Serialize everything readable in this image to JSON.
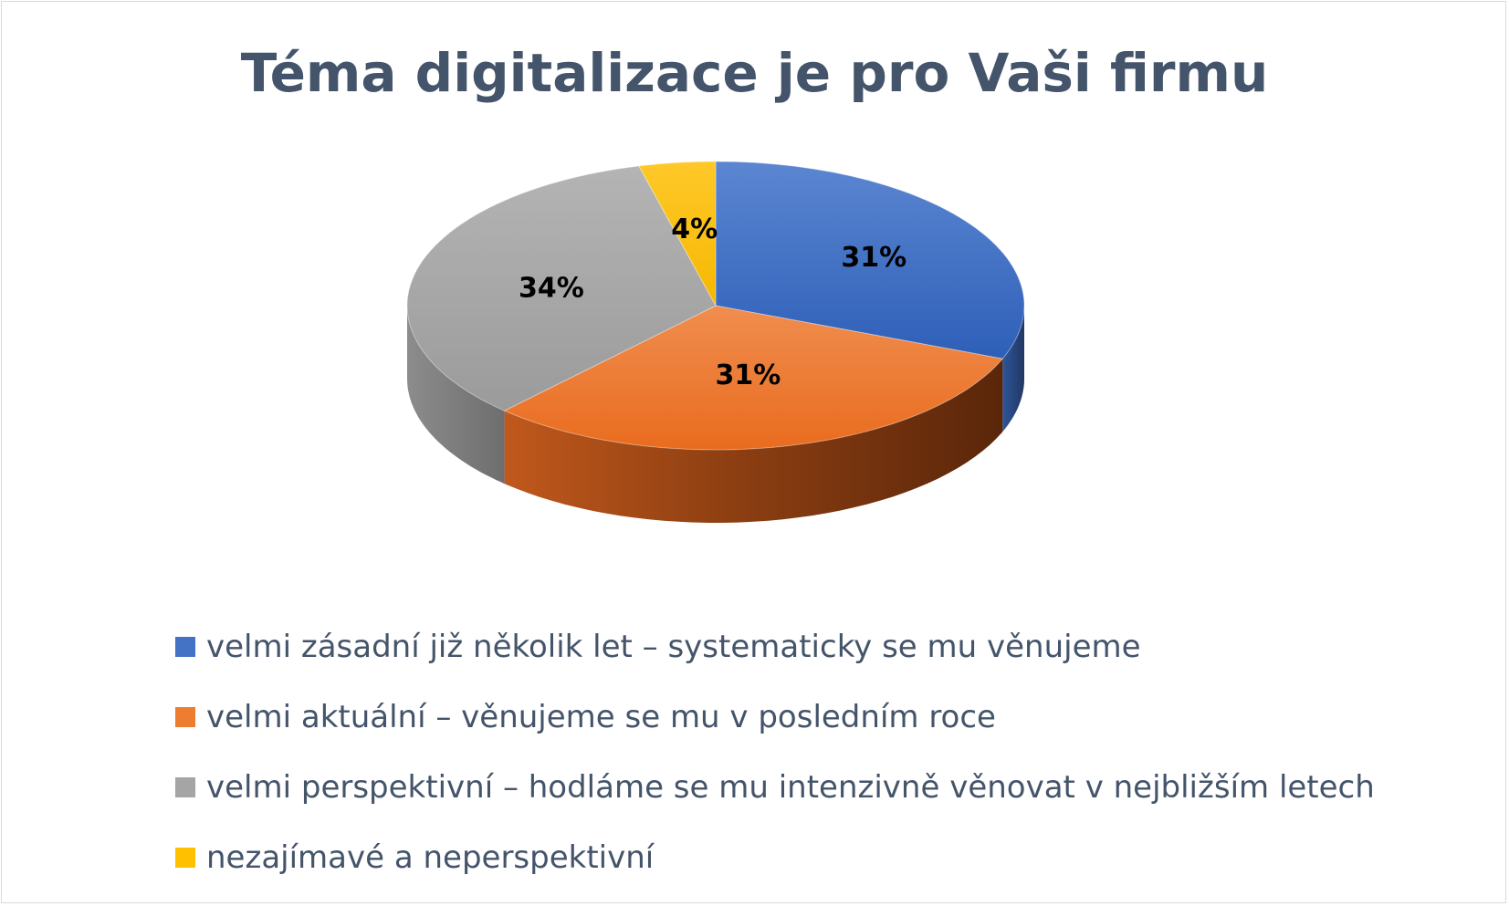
{
  "chart_data": {
    "type": "pie",
    "title": "Téma digitalizace je pro Vaši firmu",
    "slices": [
      {
        "label": "velmi zásadní již několik let – systematicky se mu věnujeme",
        "value": 31,
        "data_label": "31%",
        "color": "#4472c4"
      },
      {
        "label": "velmi aktuální – věnujeme se mu v posledním roce",
        "value": 31,
        "data_label": "31%",
        "color": "#ed7d31"
      },
      {
        "label": "velmi perspektivní – hodláme se mu intenzivně věnovat v nejbližším letech",
        "value": 34,
        "data_label": "34%",
        "color": "#a5a5a5"
      },
      {
        "label": "nezajímavé a neperspektivní",
        "value": 4,
        "data_label": "4%",
        "color": "#ffc000"
      }
    ],
    "legend_position": "bottom",
    "style": "3d-pie"
  }
}
